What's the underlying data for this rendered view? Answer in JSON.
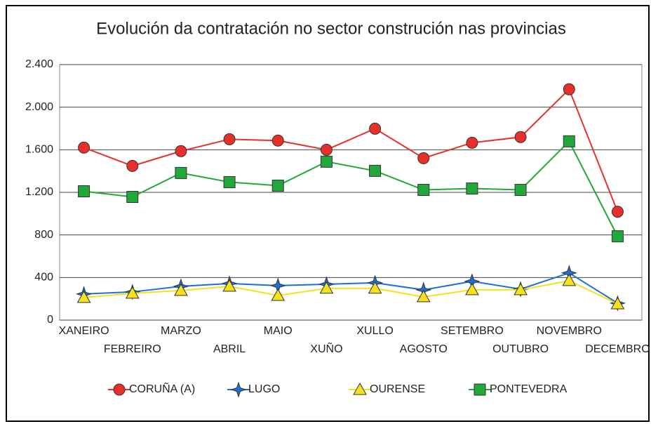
{
  "chart_data": {
    "type": "line",
    "title": "Evolución da contratación no sector construción nas provincias",
    "categories": [
      "XANEIRO",
      "FEBREIRO",
      "MARZO",
      "ABRIL",
      "MAIO",
      "XUÑO",
      "XULLO",
      "AGOSTO",
      "SETEMBRO",
      "OUTUBRO",
      "NOVEMBRO",
      "DECEMBRO"
    ],
    "series": [
      {
        "name": "CORUÑA (A)",
        "color": "#e8302a",
        "marker": "circle",
        "values": [
          1620,
          1448,
          1587,
          1699,
          1686,
          1600,
          1798,
          1521,
          1666,
          1719,
          2168,
          1018
        ]
      },
      {
        "name": "LUGO",
        "color": "#1e6fd9",
        "marker": "star",
        "values": [
          245,
          265,
          317,
          344,
          324,
          337,
          350,
          284,
          364,
          291,
          443,
          159
        ]
      },
      {
        "name": "OURENSE",
        "color": "#f5e21a",
        "marker": "triangle",
        "values": [
          212,
          251,
          278,
          317,
          231,
          298,
          298,
          218,
          284,
          284,
          370,
          152
        ]
      },
      {
        "name": "PONTEVEDRA",
        "color": "#22a83a",
        "marker": "square",
        "values": [
          1210,
          1157,
          1382,
          1296,
          1263,
          1488,
          1402,
          1223,
          1236,
          1223,
          1679,
          787
        ]
      }
    ],
    "ylim": [
      0,
      2400
    ],
    "yticks": [
      0,
      400,
      800,
      {
        "value": 1200,
        "label": "1.200"
      },
      {
        "value": 1600,
        "label": "1.600"
      },
      {
        "value": 2000,
        "label": "2.000"
      },
      {
        "value": 2400,
        "label": "2.400"
      }
    ],
    "grid": true,
    "legend": "bottom"
  }
}
